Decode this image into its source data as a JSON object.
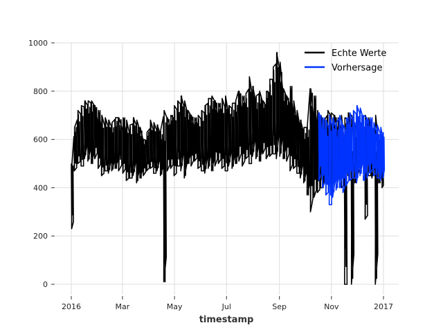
{
  "chart_data": {
    "type": "line",
    "title": "",
    "xlabel": "timestamp",
    "ylabel": "",
    "x_range": [
      "2016-01-01",
      "2017-01-01"
    ],
    "ylim": [
      0,
      1000
    ],
    "y_ticks": [
      0,
      200,
      400,
      600,
      800,
      1000
    ],
    "x_ticks": [
      {
        "date": "2016-01-01",
        "label": "2016"
      },
      {
        "date": "2016-03-01",
        "label": "Mar"
      },
      {
        "date": "2016-05-01",
        "label": "May"
      },
      {
        "date": "2016-07-01",
        "label": "Jul"
      },
      {
        "date": "2016-09-01",
        "label": "Sep"
      },
      {
        "date": "2016-11-01",
        "label": "Nov"
      },
      {
        "date": "2017-01-01",
        "label": "2017"
      }
    ],
    "grid": true,
    "legend_position": "top-right",
    "series": [
      {
        "name": "Echte Werte",
        "color": "#000000",
        "x": [
          "2016-01-01",
          "2016-01-04",
          "2016-01-08",
          "2016-01-12",
          "2016-01-16",
          "2016-01-20",
          "2016-01-24",
          "2016-01-28",
          "2016-02-01",
          "2016-02-05",
          "2016-02-09",
          "2016-02-13",
          "2016-02-17",
          "2016-02-21",
          "2016-02-25",
          "2016-03-01",
          "2016-03-05",
          "2016-03-09",
          "2016-03-13",
          "2016-03-17",
          "2016-03-21",
          "2016-03-25",
          "2016-03-29",
          "2016-04-02",
          "2016-04-06",
          "2016-04-10",
          "2016-04-14",
          "2016-04-18",
          "2016-04-22",
          "2016-04-26",
          "2016-04-30",
          "2016-05-04",
          "2016-05-08",
          "2016-05-12",
          "2016-05-16",
          "2016-05-20",
          "2016-05-24",
          "2016-05-28",
          "2016-06-01",
          "2016-06-05",
          "2016-06-09",
          "2016-06-13",
          "2016-06-17",
          "2016-06-21",
          "2016-06-25",
          "2016-06-29",
          "2016-07-03",
          "2016-07-07",
          "2016-07-11",
          "2016-07-15",
          "2016-07-19",
          "2016-07-23",
          "2016-07-27",
          "2016-07-31",
          "2016-08-04",
          "2016-08-08",
          "2016-08-12",
          "2016-08-16",
          "2016-08-20",
          "2016-08-24",
          "2016-08-28",
          "2016-09-01",
          "2016-09-05",
          "2016-09-09",
          "2016-09-13",
          "2016-09-17",
          "2016-09-21",
          "2016-09-25",
          "2016-09-29",
          "2016-10-03",
          "2016-10-07",
          "2016-10-11",
          "2016-10-15",
          "2016-10-19",
          "2016-10-23",
          "2016-10-27",
          "2016-10-31",
          "2016-11-04",
          "2016-11-08",
          "2016-11-12",
          "2016-11-16",
          "2016-11-20",
          "2016-11-24",
          "2016-11-28",
          "2016-12-02",
          "2016-12-06",
          "2016-12-10",
          "2016-12-14",
          "2016-12-18",
          "2016-12-22",
          "2016-12-26",
          "2016-12-30"
        ],
        "low": [
          230,
          470,
          500,
          490,
          520,
          510,
          500,
          520,
          480,
          450,
          470,
          460,
          470,
          480,
          470,
          460,
          430,
          440,
          450,
          420,
          440,
          450,
          470,
          480,
          460,
          470,
          450,
          10,
          470,
          480,
          450,
          490,
          470,
          440,
          500,
          490,
          510,
          480,
          470,
          460,
          480,
          470,
          490,
          500,
          480,
          470,
          490,
          480,
          500,
          510,
          490,
          520,
          500,
          530,
          520,
          510,
          540,
          520,
          530,
          540,
          520,
          530,
          520,
          510,
          470,
          480,
          460,
          440,
          420,
          370,
          300,
          360,
          380,
          400,
          420,
          430,
          380,
          420,
          440,
          400,
          0,
          450,
          0,
          420,
          460,
          500,
          270,
          450,
          440,
          0,
          420,
          400
        ],
        "high": [
          500,
          650,
          720,
          740,
          760,
          760,
          760,
          740,
          720,
          700,
          690,
          680,
          670,
          690,
          690,
          690,
          680,
          660,
          690,
          680,
          650,
          600,
          630,
          680,
          670,
          660,
          640,
          720,
          690,
          700,
          740,
          760,
          780,
          760,
          720,
          700,
          690,
          700,
          720,
          740,
          770,
          780,
          760,
          750,
          770,
          780,
          740,
          750,
          760,
          800,
          780,
          790,
          860,
          820,
          780,
          800,
          760,
          800,
          850,
          900,
          960,
          920,
          810,
          780,
          820,
          760,
          720,
          680,
          650,
          660,
          810,
          780,
          720,
          700,
          680,
          720,
          710,
          700,
          690,
          700,
          690,
          710,
          700,
          650,
          680,
          660,
          700,
          690,
          640,
          700,
          600,
          500
        ]
      },
      {
        "name": "Vorhersage",
        "color": "#0033ff",
        "x": [
          "2016-10-17",
          "2016-10-21",
          "2016-10-25",
          "2016-10-29",
          "2016-11-02",
          "2016-11-06",
          "2016-11-10",
          "2016-11-14",
          "2016-11-18",
          "2016-11-22",
          "2016-11-26",
          "2016-11-30",
          "2016-12-04",
          "2016-12-08",
          "2016-12-12",
          "2016-12-16",
          "2016-12-20",
          "2016-12-24",
          "2016-12-28",
          "2016-12-31"
        ],
        "low": [
          430,
          400,
          370,
          330,
          360,
          390,
          400,
          380,
          410,
          430,
          440,
          420,
          450,
          430,
          440,
          460,
          450,
          440,
          430,
          440
        ],
        "high": [
          710,
          690,
          680,
          700,
          690,
          670,
          700,
          660,
          690,
          710,
          720,
          740,
          730,
          700,
          690,
          690,
          670,
          660,
          650,
          630
        ]
      }
    ]
  }
}
